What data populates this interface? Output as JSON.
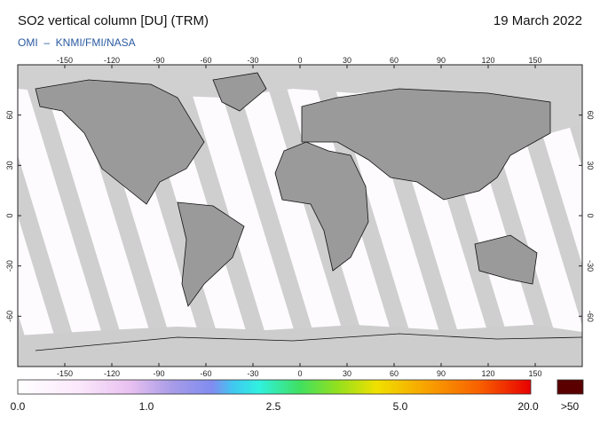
{
  "header": {
    "title": "SO2 vertical column [DU] (TRM)",
    "date": "19 March 2022",
    "subtitle": "OMI  –  KNMI/FMI/NASA"
  },
  "map": {
    "lonlim": [
      -180,
      180
    ],
    "latlim": [
      -90,
      90
    ],
    "lon_ticks": [
      -150,
      -120,
      -90,
      -60,
      -30,
      0,
      30,
      60,
      90,
      120,
      150
    ],
    "lat_ticks": [
      60,
      30,
      0,
      -30,
      -60
    ]
  },
  "colorbar": {
    "labels": [
      "0.0",
      "1.0",
      "2.5",
      "5.0",
      "20.0",
      ">50"
    ]
  }
}
